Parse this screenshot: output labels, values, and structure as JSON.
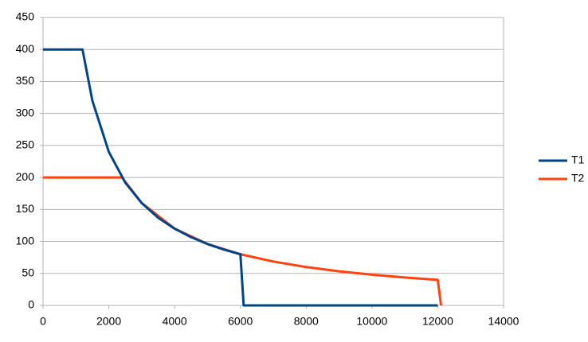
{
  "chart_data": {
    "type": "line",
    "series": [
      {
        "name": "T1",
        "color": "#004586",
        "x": [
          0,
          1200,
          1500,
          2000,
          2500,
          3000,
          3500,
          4000,
          4500,
          5000,
          5500,
          6000,
          6100,
          12000
        ],
        "values": [
          400,
          400,
          320,
          240,
          192,
          160,
          137.1,
          120,
          106.7,
          96,
          87.3,
          80,
          0,
          0
        ]
      },
      {
        "name": "T2",
        "color": "#ff420e",
        "x": [
          0,
          2400,
          3000,
          4000,
          5000,
          6000,
          7000,
          8000,
          9000,
          10000,
          11000,
          12000,
          12100
        ],
        "values": [
          200,
          200,
          160,
          120,
          96,
          80,
          68.6,
          60,
          53.3,
          48,
          43.6,
          40,
          0
        ]
      }
    ],
    "xlim": [
      0,
      14000
    ],
    "xticks": [
      0,
      2000,
      4000,
      6000,
      8000,
      10000,
      12000,
      14000
    ],
    "ylim": [
      0,
      450
    ],
    "yticks": [
      0,
      50,
      100,
      150,
      200,
      250,
      300,
      350,
      400,
      450
    ],
    "grid": true,
    "legend": "right"
  }
}
